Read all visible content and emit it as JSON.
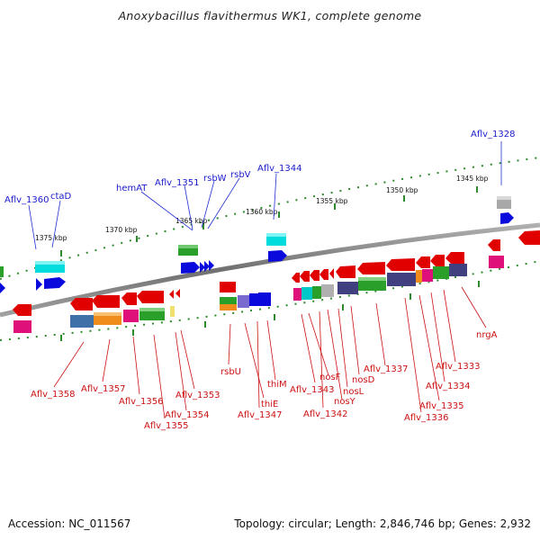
{
  "title": "Anoxybacillus flavithermus WK1, complete genome",
  "footer": {
    "accession": "Accession: NC_011567",
    "summary": "Topology: circular; Length: 2,846,746 bp; Genes: 2,932"
  },
  "scale_labels": [
    "1375 kbp",
    "1370 kbp",
    "1365 kbp",
    "1360 kbp",
    "1355 kbp",
    "1350 kbp",
    "1345 kbp"
  ],
  "top_gene_labels": [
    "Aflv_1328",
    "Aflv_1344",
    "rsbV",
    "rsbW",
    "Aflv_1351",
    "hemAT",
    "ctaD",
    "Aflv_1360"
  ],
  "bottom_gene_labels": [
    "Aflv_1358",
    "Aflv_1357",
    "Aflv_1356",
    "Aflv_1355",
    "Aflv_1354",
    "Aflv_1353",
    "rsbU",
    "thiE",
    "Aflv_1347",
    "thiM",
    "Aflv_1343",
    "nosF",
    "Aflv_1342",
    "nosY",
    "nosL",
    "nosD",
    "Aflv_1337",
    "Aflv_1336",
    "Aflv_1335",
    "Aflv_1334",
    "Aflv_1333",
    "nrgA"
  ],
  "colors": {
    "forward_gene": "#0a0adc",
    "reverse_gene": "#e00000",
    "top_label": "#1a1acc",
    "bottom_label": "#cc1010",
    "backbone": "#808080",
    "scale_tick": "#2c8a2c"
  }
}
